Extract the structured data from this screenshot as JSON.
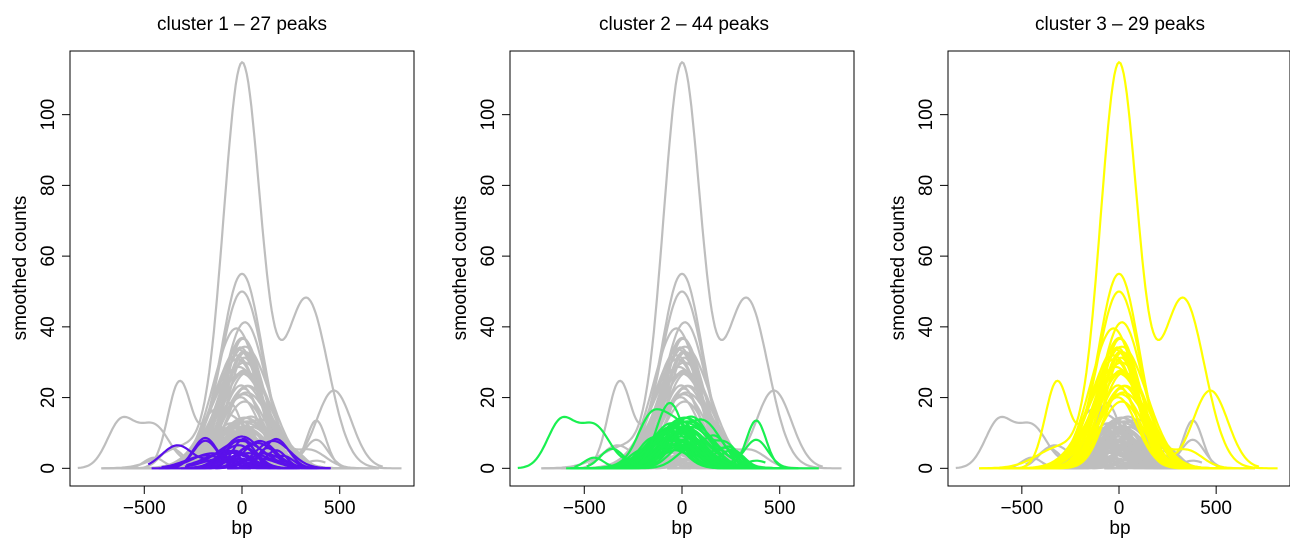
{
  "chart_data": [
    {
      "type": "line",
      "title": "cluster  1  –  27  peaks",
      "xlabel": "bp",
      "ylabel": "smoothed counts",
      "xlim": [
        -880,
        880
      ],
      "ylim": [
        -5,
        118
      ],
      "xticks": [
        -500,
        0,
        500
      ],
      "xtick_labels": [
        "−500",
        "0",
        "500"
      ],
      "yticks": [
        0,
        20,
        40,
        60,
        80,
        100
      ],
      "ytick_labels": [
        "0",
        "20",
        "40",
        "60",
        "80",
        "100"
      ],
      "background_color": "#bebebe",
      "highlight_color": "#5a10ea",
      "highlighted_count": 27,
      "grid": false
    },
    {
      "type": "line",
      "title": "cluster  2  –  44  peaks",
      "xlabel": "bp",
      "ylabel": "smoothed counts",
      "xlim": [
        -880,
        880
      ],
      "ylim": [
        -5,
        118
      ],
      "xticks": [
        -500,
        0,
        500
      ],
      "xtick_labels": [
        "−500",
        "0",
        "500"
      ],
      "yticks": [
        0,
        20,
        40,
        60,
        80,
        100
      ],
      "ytick_labels": [
        "0",
        "20",
        "40",
        "60",
        "80",
        "100"
      ],
      "background_color": "#bebebe",
      "highlight_color": "#19f050",
      "highlighted_count": 44,
      "grid": false
    },
    {
      "type": "line",
      "title": "cluster  3  –  29  peaks",
      "xlabel": "bp",
      "ylabel": "smoothed counts",
      "xlim": [
        -880,
        880
      ],
      "ylim": [
        -5,
        118
      ],
      "xticks": [
        -500,
        0,
        500
      ],
      "xtick_labels": [
        "−500",
        "0",
        "500"
      ],
      "yticks": [
        0,
        20,
        40,
        60,
        80,
        100
      ],
      "ytick_labels": [
        "0",
        "20",
        "40",
        "60",
        "80",
        "100"
      ],
      "background_color": "#bebebe",
      "highlight_color": "#ffff00",
      "highlighted_count": 29,
      "grid": false
    }
  ]
}
